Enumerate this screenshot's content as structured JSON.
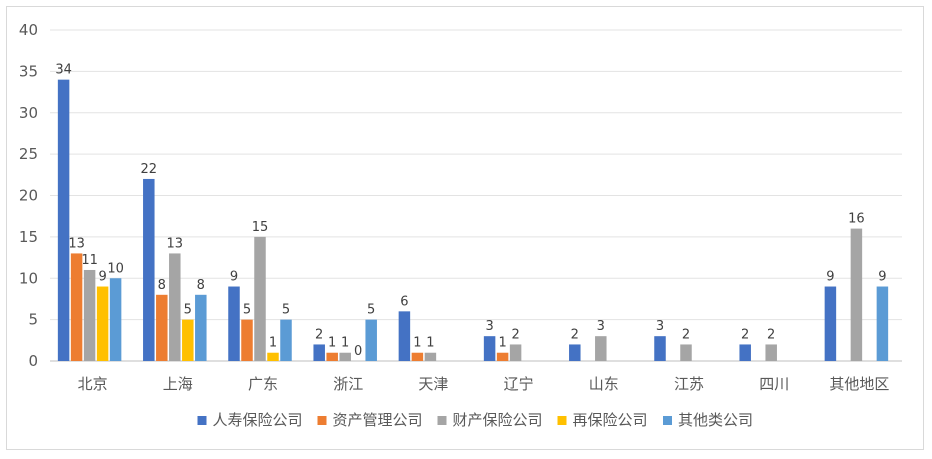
{
  "chart_data": {
    "type": "bar",
    "title": "",
    "xlabel": "",
    "ylabel": "",
    "ylim": [
      0,
      40
    ],
    "yticks": [
      0,
      5,
      10,
      15,
      20,
      25,
      30,
      35,
      40
    ],
    "grid": true,
    "legend_position": "bottom",
    "categories": [
      "北京",
      "上海",
      "广东",
      "浙江",
      "天津",
      "辽宁",
      "山东",
      "江苏",
      "四川",
      "其他地区"
    ],
    "series": [
      {
        "name": "人寿保险公司",
        "color": "#4472c4",
        "values": [
          34,
          22,
          9,
          2,
          6,
          3,
          2,
          3,
          2,
          9
        ]
      },
      {
        "name": "资产管理公司",
        "color": "#ed7d31",
        "values": [
          13,
          8,
          5,
          1,
          1,
          1,
          null,
          null,
          null,
          null
        ]
      },
      {
        "name": "财产保险公司",
        "color": "#a5a5a5",
        "values": [
          11,
          13,
          15,
          1,
          1,
          2,
          3,
          2,
          2,
          16
        ]
      },
      {
        "name": "再保险公司",
        "color": "#ffc000",
        "values": [
          9,
          5,
          1,
          0,
          null,
          null,
          null,
          null,
          null,
          null
        ]
      },
      {
        "name": "其他类公司",
        "color": "#5b9bd5",
        "values": [
          10,
          8,
          5,
          5,
          null,
          null,
          null,
          null,
          null,
          9
        ]
      }
    ]
  }
}
